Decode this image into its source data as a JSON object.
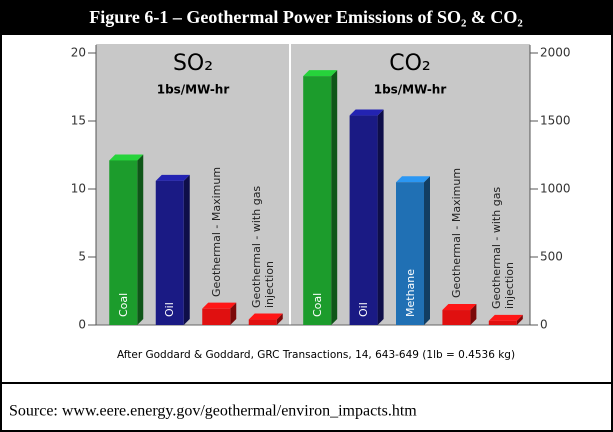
{
  "title": "Figure 6-1 – Geothermal Power Emissions of SO₂ & CO₂",
  "caption": "After Goddard & Goddard, GRC Transactions, 14, 643-649 (1lb = 0.4536 kg)",
  "source": "Source: www.eere.energy.gov/geothermal/environ_impacts.htm",
  "chart_data": [
    {
      "type": "bar",
      "label": "SO₂",
      "unit": "1bs/MW-hr",
      "axis_side": "left",
      "categories": [
        "Coal",
        "Oil",
        "Geothermal - Maximum",
        "Geothermal - with gas injection"
      ],
      "values": [
        12.1,
        10.6,
        1.2,
        0.4
      ],
      "colors": [
        "#1c9c2c",
        "#1a1a84",
        "#e01010",
        "#e01010"
      ],
      "ylim": [
        0,
        20
      ],
      "yticks": [
        0,
        5,
        10,
        15,
        20
      ]
    },
    {
      "type": "bar",
      "label": "CO₂",
      "unit": "1bs/MW-hr",
      "axis_side": "right",
      "categories": [
        "Coal",
        "Oil",
        "Methane",
        "Geothermal - Maximum",
        "Geothermal - with gas injection"
      ],
      "values": [
        1830,
        1540,
        1050,
        110,
        30
      ],
      "colors": [
        "#1c9c2c",
        "#1a1a84",
        "#2070b4",
        "#e01010",
        "#e01010"
      ],
      "ylim": [
        0,
        2000
      ],
      "yticks": [
        0,
        500,
        1000,
        1500,
        2000
      ]
    }
  ]
}
